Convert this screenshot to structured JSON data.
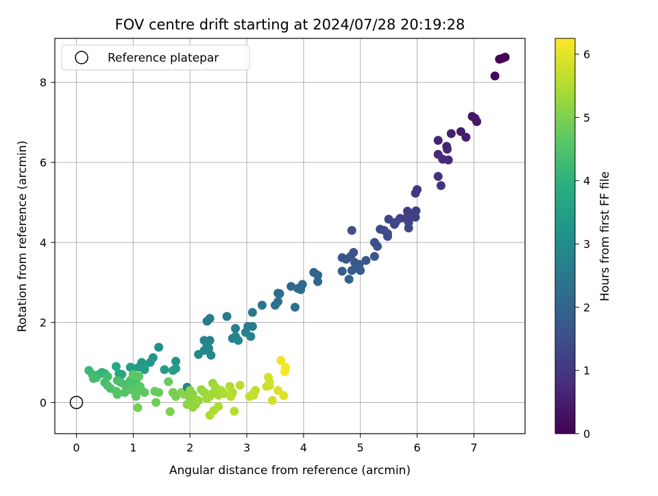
{
  "chart_data": {
    "type": "scatter",
    "title": "FOV centre drift starting at 2024/07/28 20:19:28",
    "xlabel": "Angular distance from reference (arcmin)",
    "ylabel": "Rotation from reference (arcmin)",
    "xlim": [
      -0.38,
      7.9
    ],
    "ylim": [
      -0.78,
      9.1
    ],
    "xticks": [
      0,
      1,
      2,
      3,
      4,
      5,
      6,
      7
    ],
    "yticks": [
      0,
      2,
      4,
      6,
      8
    ],
    "grid": true,
    "legend": {
      "position": "top-left",
      "entries": [
        "Reference platepar"
      ]
    },
    "reference_point": {
      "x": 0,
      "y": 0
    },
    "colorbar": {
      "label": "Hours from first FF file",
      "min": 0,
      "max": 6.25,
      "ticks": [
        0,
        1,
        2,
        3,
        4,
        5,
        6
      ],
      "colormap": "viridis"
    },
    "points": [
      {
        "x": 7.55,
        "y": 8.63,
        "h": 0.0
      },
      {
        "x": 7.5,
        "y": 8.6,
        "h": 0.03
      },
      {
        "x": 7.45,
        "y": 8.58,
        "h": 0.05
      },
      {
        "x": 7.37,
        "y": 8.16,
        "h": 0.1
      },
      {
        "x": 6.97,
        "y": 7.15,
        "h": 0.35
      },
      {
        "x": 7.02,
        "y": 7.1,
        "h": 0.38
      },
      {
        "x": 7.05,
        "y": 7.02,
        "h": 0.4
      },
      {
        "x": 6.77,
        "y": 6.77,
        "h": 0.5
      },
      {
        "x": 6.6,
        "y": 6.72,
        "h": 0.55
      },
      {
        "x": 6.86,
        "y": 6.63,
        "h": 0.52
      },
      {
        "x": 6.37,
        "y": 6.55,
        "h": 0.6
      },
      {
        "x": 6.52,
        "y": 6.4,
        "h": 0.62
      },
      {
        "x": 6.53,
        "y": 6.33,
        "h": 0.65
      },
      {
        "x": 6.37,
        "y": 6.2,
        "h": 0.7
      },
      {
        "x": 6.45,
        "y": 6.08,
        "h": 0.72
      },
      {
        "x": 6.55,
        "y": 6.06,
        "h": 0.75
      },
      {
        "x": 6.37,
        "y": 5.65,
        "h": 0.85
      },
      {
        "x": 6.42,
        "y": 5.42,
        "h": 0.9
      },
      {
        "x": 6.0,
        "y": 5.32,
        "h": 1.0
      },
      {
        "x": 5.97,
        "y": 5.23,
        "h": 1.02
      },
      {
        "x": 5.83,
        "y": 4.78,
        "h": 1.15
      },
      {
        "x": 5.98,
        "y": 4.79,
        "h": 1.15
      },
      {
        "x": 5.9,
        "y": 4.7,
        "h": 1.18
      },
      {
        "x": 5.8,
        "y": 4.6,
        "h": 1.2
      },
      {
        "x": 5.97,
        "y": 4.63,
        "h": 1.22
      },
      {
        "x": 5.85,
        "y": 4.5,
        "h": 1.25
      },
      {
        "x": 5.7,
        "y": 4.6,
        "h": 1.25
      },
      {
        "x": 5.62,
        "y": 4.5,
        "h": 1.3
      },
      {
        "x": 5.5,
        "y": 4.58,
        "h": 1.3
      },
      {
        "x": 5.6,
        "y": 4.45,
        "h": 1.33
      },
      {
        "x": 5.85,
        "y": 4.36,
        "h": 1.35
      },
      {
        "x": 5.35,
        "y": 4.33,
        "h": 1.4
      },
      {
        "x": 5.42,
        "y": 4.3,
        "h": 1.42
      },
      {
        "x": 5.48,
        "y": 4.22,
        "h": 1.45
      },
      {
        "x": 5.48,
        "y": 4.15,
        "h": 1.47
      },
      {
        "x": 4.85,
        "y": 4.3,
        "h": 1.5
      },
      {
        "x": 5.25,
        "y": 4.0,
        "h": 1.55
      },
      {
        "x": 5.3,
        "y": 3.9,
        "h": 1.57
      },
      {
        "x": 4.88,
        "y": 3.75,
        "h": 1.6
      },
      {
        "x": 4.83,
        "y": 3.65,
        "h": 1.62
      },
      {
        "x": 4.68,
        "y": 3.62,
        "h": 1.65
      },
      {
        "x": 4.75,
        "y": 3.58,
        "h": 1.67
      },
      {
        "x": 5.25,
        "y": 3.65,
        "h": 1.65
      },
      {
        "x": 5.1,
        "y": 3.55,
        "h": 1.7
      },
      {
        "x": 4.9,
        "y": 3.5,
        "h": 1.72
      },
      {
        "x": 4.98,
        "y": 3.45,
        "h": 1.75
      },
      {
        "x": 4.95,
        "y": 3.35,
        "h": 1.78
      },
      {
        "x": 4.85,
        "y": 3.3,
        "h": 1.8
      },
      {
        "x": 5.0,
        "y": 3.3,
        "h": 1.82
      },
      {
        "x": 4.68,
        "y": 3.28,
        "h": 1.85
      },
      {
        "x": 4.8,
        "y": 3.08,
        "h": 1.88
      },
      {
        "x": 4.18,
        "y": 3.25,
        "h": 2.0
      },
      {
        "x": 4.25,
        "y": 3.18,
        "h": 2.02
      },
      {
        "x": 4.25,
        "y": 3.02,
        "h": 2.05
      },
      {
        "x": 3.98,
        "y": 2.95,
        "h": 2.1
      },
      {
        "x": 3.78,
        "y": 2.9,
        "h": 2.12
      },
      {
        "x": 3.9,
        "y": 2.85,
        "h": 2.15
      },
      {
        "x": 3.95,
        "y": 2.82,
        "h": 2.17
      },
      {
        "x": 3.55,
        "y": 2.73,
        "h": 2.25
      },
      {
        "x": 3.58,
        "y": 2.72,
        "h": 2.27
      },
      {
        "x": 3.55,
        "y": 2.52,
        "h": 2.3
      },
      {
        "x": 3.5,
        "y": 2.43,
        "h": 2.33
      },
      {
        "x": 3.27,
        "y": 2.43,
        "h": 2.4
      },
      {
        "x": 3.85,
        "y": 2.38,
        "h": 2.35
      },
      {
        "x": 3.1,
        "y": 2.25,
        "h": 2.45
      },
      {
        "x": 2.35,
        "y": 2.1,
        "h": 2.55
      },
      {
        "x": 2.3,
        "y": 2.03,
        "h": 2.57
      },
      {
        "x": 2.65,
        "y": 2.15,
        "h": 2.55
      },
      {
        "x": 3.02,
        "y": 1.9,
        "h": 2.6
      },
      {
        "x": 3.1,
        "y": 1.9,
        "h": 2.62
      },
      {
        "x": 2.8,
        "y": 1.85,
        "h": 2.65
      },
      {
        "x": 2.25,
        "y": 1.55,
        "h": 2.75
      },
      {
        "x": 2.35,
        "y": 1.55,
        "h": 2.77
      },
      {
        "x": 2.3,
        "y": 1.45,
        "h": 2.8
      },
      {
        "x": 2.8,
        "y": 1.65,
        "h": 2.75
      },
      {
        "x": 2.98,
        "y": 1.75,
        "h": 2.73
      },
      {
        "x": 3.07,
        "y": 1.65,
        "h": 2.75
      },
      {
        "x": 2.75,
        "y": 1.6,
        "h": 2.78
      },
      {
        "x": 2.85,
        "y": 1.55,
        "h": 2.8
      },
      {
        "x": 2.33,
        "y": 1.35,
        "h": 2.85
      },
      {
        "x": 2.25,
        "y": 1.3,
        "h": 2.87
      },
      {
        "x": 2.15,
        "y": 1.2,
        "h": 2.9
      },
      {
        "x": 2.37,
        "y": 1.18,
        "h": 2.92
      },
      {
        "x": 1.45,
        "y": 1.38,
        "h": 3.1
      },
      {
        "x": 1.35,
        "y": 1.12,
        "h": 3.2
      },
      {
        "x": 1.3,
        "y": 1.0,
        "h": 3.25
      },
      {
        "x": 1.15,
        "y": 1.0,
        "h": 3.3
      },
      {
        "x": 1.75,
        "y": 1.03,
        "h": 3.25
      },
      {
        "x": 1.2,
        "y": 0.92,
        "h": 3.35
      },
      {
        "x": 1.1,
        "y": 0.88,
        "h": 3.4
      },
      {
        "x": 1.0,
        "y": 0.85,
        "h": 3.45
      },
      {
        "x": 0.95,
        "y": 0.88,
        "h": 3.45
      },
      {
        "x": 1.2,
        "y": 0.82,
        "h": 3.5
      },
      {
        "x": 1.55,
        "y": 0.82,
        "h": 3.45
      },
      {
        "x": 1.7,
        "y": 0.8,
        "h": 3.45
      },
      {
        "x": 1.75,
        "y": 0.85,
        "h": 3.42
      },
      {
        "x": 0.75,
        "y": 0.72,
        "h": 3.7
      },
      {
        "x": 0.8,
        "y": 0.7,
        "h": 3.75
      },
      {
        "x": 1.0,
        "y": 0.7,
        "h": 3.6
      },
      {
        "x": 0.7,
        "y": 0.9,
        "h": 3.8
      },
      {
        "x": 0.45,
        "y": 0.75,
        "h": 4.0
      },
      {
        "x": 0.5,
        "y": 0.72,
        "h": 4.05
      },
      {
        "x": 0.4,
        "y": 0.7,
        "h": 4.1
      },
      {
        "x": 0.22,
        "y": 0.8,
        "h": 4.2
      },
      {
        "x": 0.28,
        "y": 0.7,
        "h": 4.25
      },
      {
        "x": 0.35,
        "y": 0.62,
        "h": 4.3
      },
      {
        "x": 0.3,
        "y": 0.6,
        "h": 4.32
      },
      {
        "x": 0.55,
        "y": 0.65,
        "h": 4.28
      },
      {
        "x": 0.5,
        "y": 0.5,
        "h": 4.35
      },
      {
        "x": 0.55,
        "y": 0.42,
        "h": 4.4
      },
      {
        "x": 0.6,
        "y": 0.35,
        "h": 4.45
      },
      {
        "x": 0.72,
        "y": 0.55,
        "h": 4.38
      },
      {
        "x": 0.78,
        "y": 0.5,
        "h": 4.4
      },
      {
        "x": 0.85,
        "y": 0.45,
        "h": 4.42
      },
      {
        "x": 0.95,
        "y": 0.42,
        "h": 4.45
      },
      {
        "x": 0.95,
        "y": 0.55,
        "h": 4.4
      },
      {
        "x": 1.05,
        "y": 0.6,
        "h": 4.42
      },
      {
        "x": 1.05,
        "y": 0.5,
        "h": 4.45
      },
      {
        "x": 0.7,
        "y": 0.28,
        "h": 4.5
      },
      {
        "x": 0.72,
        "y": 0.2,
        "h": 4.55
      },
      {
        "x": 0.85,
        "y": 0.25,
        "h": 4.55
      },
      {
        "x": 0.92,
        "y": 0.32,
        "h": 4.55
      },
      {
        "x": 1.0,
        "y": 0.3,
        "h": 4.6
      },
      {
        "x": 1.05,
        "y": 0.22,
        "h": 4.62
      },
      {
        "x": 1.12,
        "y": 0.4,
        "h": 4.6
      },
      {
        "x": 1.15,
        "y": 0.3,
        "h": 4.65
      },
      {
        "x": 1.2,
        "y": 0.25,
        "h": 4.67
      },
      {
        "x": 1.05,
        "y": 0.15,
        "h": 4.7
      },
      {
        "x": 1.0,
        "y": 0.7,
        "h": 4.6
      },
      {
        "x": 1.1,
        "y": 0.65,
        "h": 4.62
      },
      {
        "x": 1.38,
        "y": 0.28,
        "h": 4.75
      },
      {
        "x": 1.45,
        "y": 0.25,
        "h": 4.78
      },
      {
        "x": 1.4,
        "y": 0.0,
        "h": 4.85
      },
      {
        "x": 1.08,
        "y": -0.13,
        "h": 4.88
      },
      {
        "x": 1.62,
        "y": 0.52,
        "h": 4.8
      },
      {
        "x": 1.7,
        "y": 0.25,
        "h": 4.9
      },
      {
        "x": 1.75,
        "y": 0.15,
        "h": 4.95
      },
      {
        "x": 1.65,
        "y": -0.23,
        "h": 5.0
      },
      {
        "x": 1.85,
        "y": 0.25,
        "h": 5.05
      },
      {
        "x": 1.9,
        "y": 0.2,
        "h": 5.08
      },
      {
        "x": 1.95,
        "y": 0.38,
        "h": 2.85
      },
      {
        "x": 2.0,
        "y": 0.3,
        "h": 5.1
      },
      {
        "x": 2.05,
        "y": 0.2,
        "h": 5.12
      },
      {
        "x": 2.0,
        "y": 0.05,
        "h": 5.15
      },
      {
        "x": 1.95,
        "y": -0.05,
        "h": 5.17
      },
      {
        "x": 2.05,
        "y": -0.12,
        "h": 5.2
      },
      {
        "x": 2.1,
        "y": -0.05,
        "h": 5.22
      },
      {
        "x": 2.15,
        "y": 0.05,
        "h": 5.25
      },
      {
        "x": 2.2,
        "y": 0.32,
        "h": 5.2
      },
      {
        "x": 2.25,
        "y": 0.25,
        "h": 5.27
      },
      {
        "x": 2.3,
        "y": 0.2,
        "h": 5.3
      },
      {
        "x": 2.3,
        "y": 0.1,
        "h": 5.32
      },
      {
        "x": 2.4,
        "y": 0.48,
        "h": 5.3
      },
      {
        "x": 2.45,
        "y": 0.38,
        "h": 5.35
      },
      {
        "x": 2.42,
        "y": 0.25,
        "h": 5.37
      },
      {
        "x": 2.35,
        "y": 0.15,
        "h": 5.38
      },
      {
        "x": 2.5,
        "y": 0.18,
        "h": 5.4
      },
      {
        "x": 2.55,
        "y": 0.3,
        "h": 5.42
      },
      {
        "x": 2.6,
        "y": 0.22,
        "h": 5.45
      },
      {
        "x": 2.5,
        "y": -0.1,
        "h": 5.45
      },
      {
        "x": 2.42,
        "y": -0.2,
        "h": 5.47
      },
      {
        "x": 2.35,
        "y": -0.32,
        "h": 5.5
      },
      {
        "x": 2.7,
        "y": 0.4,
        "h": 5.5
      },
      {
        "x": 2.75,
        "y": 0.25,
        "h": 5.52
      },
      {
        "x": 2.72,
        "y": 0.15,
        "h": 5.55
      },
      {
        "x": 2.78,
        "y": -0.22,
        "h": 5.57
      },
      {
        "x": 2.88,
        "y": 0.43,
        "h": 5.6
      },
      {
        "x": 3.1,
        "y": 0.2,
        "h": 5.65
      },
      {
        "x": 3.15,
        "y": 0.3,
        "h": 5.67
      },
      {
        "x": 3.12,
        "y": 0.18,
        "h": 5.7
      },
      {
        "x": 3.05,
        "y": 0.15,
        "h": 5.72
      },
      {
        "x": 3.35,
        "y": 0.4,
        "h": 5.75
      },
      {
        "x": 3.4,
        "y": 0.42,
        "h": 5.77
      },
      {
        "x": 3.4,
        "y": 0.5,
        "h": 5.8
      },
      {
        "x": 3.38,
        "y": 0.63,
        "h": 5.85
      },
      {
        "x": 3.45,
        "y": 0.05,
        "h": 5.82
      },
      {
        "x": 3.55,
        "y": 0.3,
        "h": 5.9
      },
      {
        "x": 3.65,
        "y": 0.17,
        "h": 5.95
      },
      {
        "x": 3.6,
        "y": 1.05,
        "h": 6.1
      },
      {
        "x": 3.68,
        "y": 0.88,
        "h": 6.15
      },
      {
        "x": 3.67,
        "y": 0.77,
        "h": 6.2
      }
    ]
  }
}
